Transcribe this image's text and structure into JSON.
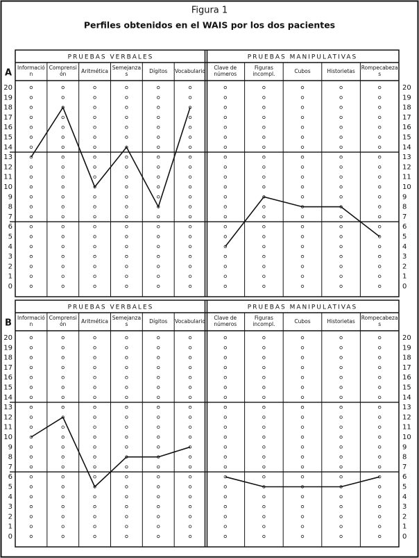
{
  "figure": {
    "title": "Figura 1",
    "subtitle": "Perfiles obtenidos en el WAIS por los dos pacientes"
  },
  "chart_data": [
    {
      "type": "line",
      "title": "A",
      "categories": [
        "Información",
        "Comprensión",
        "Aritmética",
        "Semejanzas",
        "Dígitos",
        "Vocabulario",
        "Clave de números",
        "Figuras incompl.",
        "Cubos",
        "Historietas",
        "Rompecabezas"
      ],
      "series": [
        {
          "name": "PRUEBAS VERBALES",
          "color": "#111111",
          "values": [
            13,
            18,
            10,
            14,
            8,
            18,
            null,
            null,
            null,
            null,
            null
          ]
        },
        {
          "name": "PRUEBAS MANIPULATIVAS",
          "color": "#111111",
          "values": [
            null,
            null,
            null,
            null,
            null,
            null,
            4,
            9,
            8,
            8,
            5
          ]
        }
      ],
      "ylim": [
        0,
        20
      ],
      "yticks": [
        0,
        1,
        2,
        3,
        4,
        5,
        6,
        7,
        8,
        9,
        10,
        11,
        12,
        13,
        14,
        15,
        16,
        17,
        18,
        19,
        20
      ]
    },
    {
      "type": "line",
      "title": "B",
      "categories": [
        "Información",
        "Comprensión",
        "Aritmética",
        "Semejanzas",
        "Dígitos",
        "Vocabulario",
        "Clave de números",
        "Figuras incompl.",
        "Cubos",
        "Historietas",
        "Rompecabezas"
      ],
      "series": [
        {
          "name": "PRUEBAS VERBALES",
          "color": "#111111",
          "values": [
            10,
            12,
            5,
            8,
            8,
            9,
            null,
            null,
            null,
            null,
            null
          ]
        },
        {
          "name": "PRUEBAS MANIPULATIVAS",
          "color": "#111111",
          "values": [
            null,
            null,
            null,
            null,
            null,
            null,
            6,
            5,
            5,
            5,
            6
          ]
        }
      ],
      "ylim": [
        0,
        20
      ],
      "yticks": [
        0,
        1,
        2,
        3,
        4,
        5,
        6,
        7,
        8,
        9,
        10,
        11,
        12,
        13,
        14,
        15,
        16,
        17,
        18,
        19,
        20
      ]
    }
  ]
}
